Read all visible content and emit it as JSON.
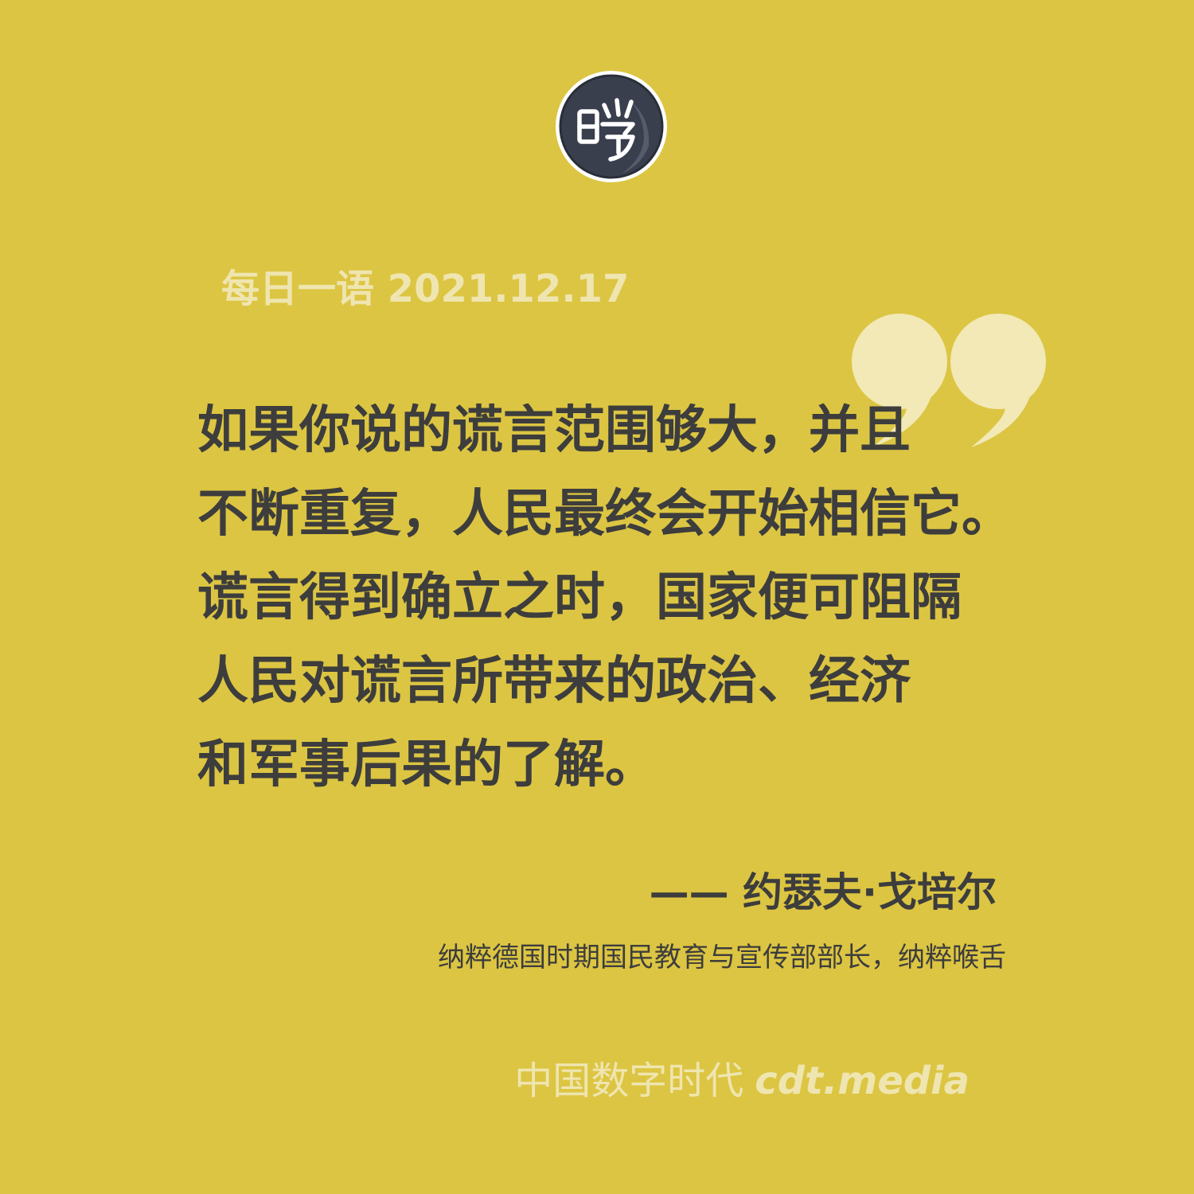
{
  "header": {
    "title": "每日一语 2021.12.17"
  },
  "logo": {
    "icon": "cdt-seal-logo"
  },
  "quote": {
    "lines": [
      "如果你说的谎言范围够大，并且",
      "不断重复，人民最终会开始相信它。",
      "谎言得到确立之时，国家便可阻隔",
      "人民对谎言所带来的政治、经济",
      "和军事后果的了解。"
    ]
  },
  "attribution": {
    "author": "—— 约瑟夫·戈培尔",
    "description": "纳粹德国时期国民教育与宣传部部长，纳粹喉舌"
  },
  "footer": {
    "brand": "中国数字时代",
    "site": "cdt.media"
  },
  "colors": {
    "background": "#dcc542",
    "light_text": "#efe5b0",
    "dark_text": "#3d3d3d",
    "logo_dark": "#3a3f4e"
  }
}
